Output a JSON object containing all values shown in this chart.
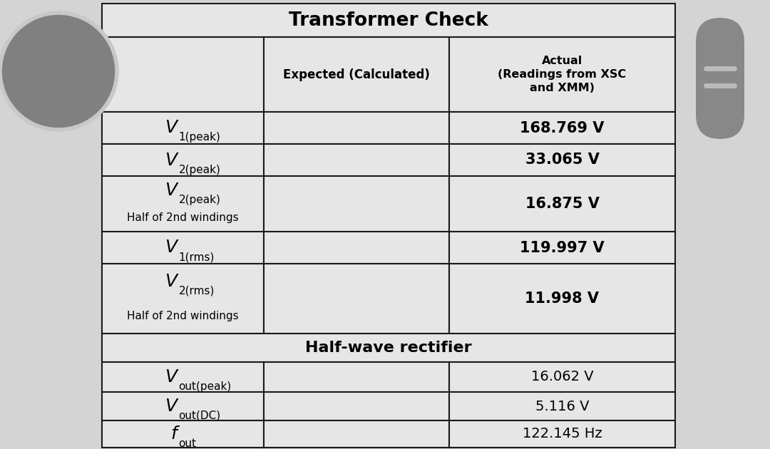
{
  "title": "Transformer Check",
  "col_header_expected": "Expected (Calculated)",
  "col_header_actual": "Actual\n(Readings from XSC\nand XMM)",
  "rows": [
    {
      "main": "V",
      "sub": "1(peak)",
      "sub2": "",
      "actual": "168.769 V",
      "bold": true
    },
    {
      "main": "V",
      "sub": "2(peak)",
      "sub2": "",
      "actual": "33.065 V",
      "bold": true
    },
    {
      "main": "V",
      "sub": "2(peak)",
      "sub2": "Half of 2nd windings",
      "actual": "16.875 V",
      "bold": true
    },
    {
      "main": "V",
      "sub": "1(rms)",
      "sub2": "",
      "actual": "119.997 V",
      "bold": true
    },
    {
      "main": "V",
      "sub": "2(rms)",
      "sub2": "Half of 2nd windings",
      "actual": "11.998 V",
      "bold": true
    }
  ],
  "section_header": "Half-wave rectifier",
  "rows2": [
    {
      "main": "V",
      "sub": "out(peak)",
      "sub2": "",
      "actual": "16.062 V",
      "bold": false
    },
    {
      "main": "V",
      "sub": "out(DC)",
      "sub2": "",
      "actual": "5.116 V",
      "bold": false
    },
    {
      "main": "f",
      "sub": "out",
      "sub2": "",
      "actual": "122.145 Hz",
      "bold": false
    }
  ],
  "bg_color": "#d4d4d4",
  "table_bg": "#e6e6e6",
  "border_color": "#1a1a1a",
  "circle_color": "#888888",
  "pill_color": "#888888",
  "pill_line_color": "#bbbbbb"
}
